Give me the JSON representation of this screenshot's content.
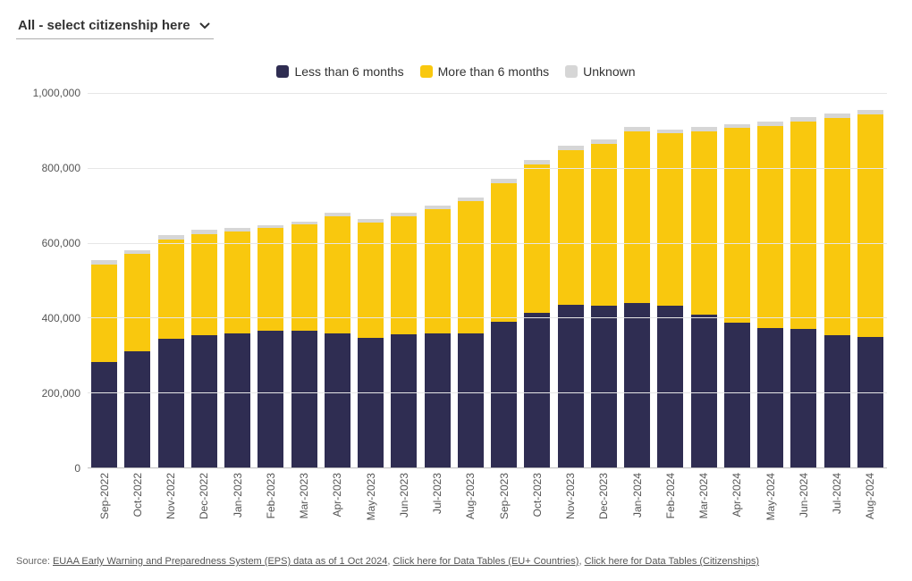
{
  "dropdown": {
    "label": "All - select citizenship here"
  },
  "legend": [
    {
      "label": "Less than 6 months",
      "color": "#2f2d52"
    },
    {
      "label": "More than 6 months",
      "color": "#f9c80e"
    },
    {
      "label": "Unknown",
      "color": "#d6d6d6"
    }
  ],
  "chart": {
    "type": "stacked-bar",
    "background_color": "#ffffff",
    "grid_color": "#e6e6e6",
    "axis_color": "#bfbfbf",
    "label_fontsize": 12,
    "label_color": "#555555",
    "y": {
      "min": 0,
      "max": 1000000,
      "step": 200000,
      "tick_labels": [
        "0",
        "200,000",
        "400,000",
        "600,000",
        "800,000",
        "1,000,000"
      ]
    },
    "bar_width_ratio": 0.78,
    "series_keys": [
      "less6",
      "more6",
      "unknown"
    ],
    "series_colors": {
      "less6": "#2f2d52",
      "more6": "#f9c80e",
      "unknown": "#d6d6d6"
    },
    "categories": [
      "Sep-2022",
      "Oct-2022",
      "Nov-2022",
      "Dec-2022",
      "Jan-2023",
      "Feb-2023",
      "Mar-2023",
      "Apr-2023",
      "May-2023",
      "Jun-2023",
      "Jul-2023",
      "Aug-2023",
      "Sep-2023",
      "Oct-2023",
      "Nov-2023",
      "Dec-2023",
      "Jan-2024",
      "Feb-2024",
      "Mar-2024",
      "Apr-2024",
      "May-2024",
      "Jun-2024",
      "Jul-2024",
      "Aug-2024"
    ],
    "data": [
      {
        "less6": 280000,
        "more6": 260000,
        "unknown": 12000
      },
      {
        "less6": 310000,
        "more6": 258000,
        "unknown": 10000
      },
      {
        "less6": 342000,
        "more6": 265000,
        "unknown": 11000
      },
      {
        "less6": 352000,
        "more6": 270000,
        "unknown": 11000
      },
      {
        "less6": 358000,
        "more6": 271000,
        "unknown": 10000
      },
      {
        "less6": 365000,
        "more6": 272000,
        "unknown": 9000
      },
      {
        "less6": 365000,
        "more6": 282000,
        "unknown": 9000
      },
      {
        "less6": 358000,
        "more6": 312000,
        "unknown": 9000
      },
      {
        "less6": 345000,
        "more6": 308000,
        "unknown": 9000
      },
      {
        "less6": 354000,
        "more6": 316000,
        "unknown": 9000
      },
      {
        "less6": 356000,
        "more6": 332000,
        "unknown": 10000
      },
      {
        "less6": 358000,
        "more6": 352000,
        "unknown": 10000
      },
      {
        "less6": 387000,
        "more6": 370000,
        "unknown": 12000
      },
      {
        "less6": 412000,
        "more6": 395000,
        "unknown": 12000
      },
      {
        "less6": 434000,
        "more6": 412000,
        "unknown": 12000
      },
      {
        "less6": 430000,
        "more6": 432000,
        "unknown": 12000
      },
      {
        "less6": 438000,
        "more6": 458000,
        "unknown": 11000
      },
      {
        "less6": 430000,
        "more6": 460000,
        "unknown": 11000
      },
      {
        "less6": 408000,
        "more6": 488000,
        "unknown": 11000
      },
      {
        "less6": 386000,
        "more6": 518000,
        "unknown": 11000
      },
      {
        "less6": 372000,
        "more6": 538000,
        "unknown": 11000
      },
      {
        "less6": 368000,
        "more6": 554000,
        "unknown": 12000
      },
      {
        "less6": 352000,
        "more6": 578000,
        "unknown": 12000
      },
      {
        "less6": 348000,
        "more6": 592000,
        "unknown": 12000
      }
    ]
  },
  "source": {
    "prefix": "Source: ",
    "links": [
      "EUAA Early Warning and Preparedness System (EPS) data as of 1 Oct 2024",
      "Click here for Data Tables (EU+ Countries)",
      "Click here for Data Tables (Citizenships)"
    ],
    "sep": ", "
  }
}
